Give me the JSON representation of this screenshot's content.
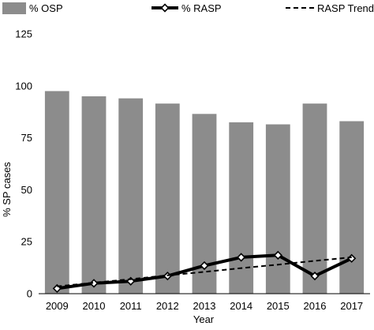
{
  "chart_data": {
    "type": "bar",
    "categories": [
      "2009",
      "2010",
      "2011",
      "2012",
      "2013",
      "2014",
      "2015",
      "2016",
      "2017"
    ],
    "series": [
      {
        "name": "% OSP",
        "type": "bar",
        "color": "#8c8c8c",
        "values": [
          97.5,
          95,
          94,
          91.5,
          86.5,
          82.5,
          81.5,
          91.5,
          83
        ]
      },
      {
        "name": "% RASP",
        "type": "line",
        "color": "#000000",
        "marker": "diamond",
        "values": [
          2.5,
          5,
          6,
          8.5,
          13.5,
          17.5,
          18.5,
          8.5,
          17
        ]
      },
      {
        "name": "RASP Trend",
        "type": "line",
        "style": "dashed",
        "color": "#000000",
        "values": [
          3.5,
          5.3,
          7,
          8.8,
          10.5,
          12.3,
          14,
          15.8,
          17.5
        ]
      }
    ],
    "title": "",
    "xlabel": "Year",
    "ylabel": "% SP cases",
    "ylim": [
      0,
      125
    ],
    "yticks": [
      0,
      25,
      50,
      75,
      100,
      125
    ],
    "grid": false,
    "legend": "top"
  }
}
